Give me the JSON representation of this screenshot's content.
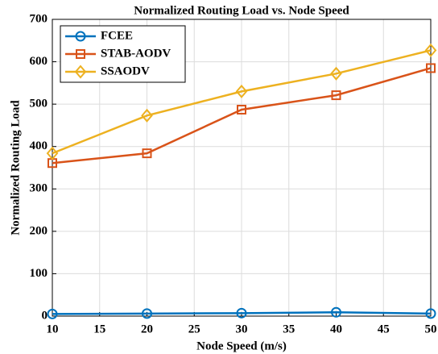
{
  "chart_data": {
    "type": "line",
    "title": "Normalized Routing Load vs. Node Speed",
    "x_label": "Node Speed (m/s)",
    "y_label": "Normalized Routing Load",
    "x": [
      10,
      20,
      30,
      40,
      50
    ],
    "series": [
      {
        "name": "FCEE",
        "color": "#0072BD",
        "marker": "circle",
        "values": [
          5,
          6,
          7,
          9,
          6
        ]
      },
      {
        "name": "STAB-AODV",
        "color": "#D95319",
        "marker": "square",
        "values": [
          361,
          384,
          487,
          521,
          585
        ]
      },
      {
        "name": "SSAODV",
        "color": "#EDB120",
        "marker": "diamond",
        "values": [
          384,
          473,
          530,
          572,
          627
        ]
      }
    ],
    "xlim": [
      10,
      50
    ],
    "xticks": [
      10,
      15,
      20,
      25,
      30,
      35,
      40,
      45,
      50
    ],
    "ylim": [
      0,
      700
    ],
    "yticks": [
      0,
      100,
      200,
      300,
      400,
      500,
      600,
      700
    ],
    "grid": true,
    "legend": "top-left"
  }
}
